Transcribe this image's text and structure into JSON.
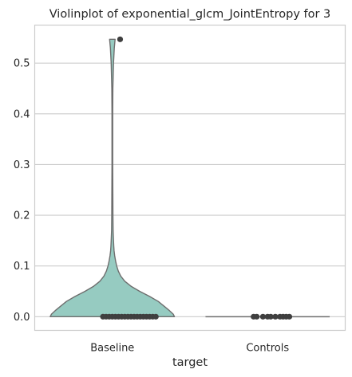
{
  "chart_data": {
    "type": "violin",
    "title": "Violinplot of exponential_glcm_JointEntropy for 3",
    "xlabel": "target",
    "ylabel": "",
    "categories": [
      "Baseline",
      "Controls"
    ],
    "ylim": [
      -0.027,
      0.575
    ],
    "yticks": [
      0.0,
      0.1,
      0.2,
      0.3,
      0.4,
      0.5
    ],
    "ytick_labels": [
      "0.0",
      "0.1",
      "0.2",
      "0.3",
      "0.4",
      "0.5"
    ],
    "grid": "horizontal",
    "colors": {
      "violin_fill": "#96cbc1",
      "violin_edge": "#6e6e6e",
      "points": "#3f3f3f",
      "grid": "#cccccc"
    },
    "violins": [
      {
        "name": "Baseline",
        "max_half_width": 0.5,
        "profile": [
          [
            0.0,
            0.5
          ],
          [
            0.005,
            0.49
          ],
          [
            0.012,
            0.46
          ],
          [
            0.02,
            0.42
          ],
          [
            0.03,
            0.37
          ],
          [
            0.04,
            0.3
          ],
          [
            0.05,
            0.22
          ],
          [
            0.06,
            0.15
          ],
          [
            0.07,
            0.1
          ],
          [
            0.08,
            0.068
          ],
          [
            0.09,
            0.048
          ],
          [
            0.1,
            0.035
          ],
          [
            0.11,
            0.026
          ],
          [
            0.12,
            0.019
          ],
          [
            0.13,
            0.014
          ],
          [
            0.14,
            0.011
          ],
          [
            0.15,
            0.009
          ],
          [
            0.17,
            0.006
          ],
          [
            0.2,
            0.0045
          ],
          [
            0.3,
            0.003
          ],
          [
            0.4,
            0.003
          ],
          [
            0.45,
            0.004
          ],
          [
            0.5,
            0.009
          ],
          [
            0.53,
            0.016
          ],
          [
            0.547,
            0.022
          ]
        ],
        "points": [
          0.0,
          0.0,
          0.0,
          0.0,
          0.0,
          0.0,
          0.0,
          0.0,
          0.0,
          0.0,
          0.0,
          0.0,
          0.0,
          0.0,
          0.0,
          0.0,
          0.0,
          0.0,
          0.547
        ],
        "point_offsets": [
          -0.06,
          -0.04,
          -0.02,
          0.0,
          0.02,
          0.04,
          0.06,
          0.08,
          0.1,
          0.12,
          0.14,
          0.16,
          0.18,
          0.2,
          0.22,
          0.24,
          0.26,
          0.28,
          0.05
        ]
      },
      {
        "name": "Controls",
        "max_half_width": 0.5,
        "profile": [
          [
            0.0,
            0.5
          ],
          [
            0.0,
            0.5
          ]
        ],
        "points": [
          0.0,
          0.0,
          0.0,
          0.0,
          0.0,
          0.0,
          0.0,
          0.0,
          0.0,
          0.0
        ],
        "point_offsets": [
          -0.09,
          -0.07,
          -0.03,
          0.0,
          0.02,
          0.05,
          0.08,
          0.1,
          0.12,
          0.14
        ]
      }
    ]
  }
}
